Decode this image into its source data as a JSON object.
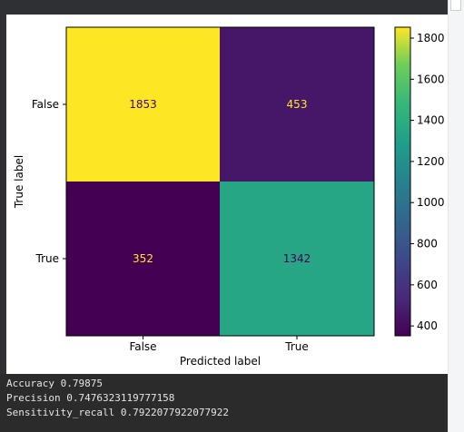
{
  "chart_data": {
    "type": "heatmap",
    "x_categories": [
      "False",
      "True"
    ],
    "y_categories": [
      "False",
      "True"
    ],
    "values": [
      [
        1853,
        453
      ],
      [
        352,
        1342
      ]
    ],
    "xlabel": "Predicted label",
    "ylabel": "True label",
    "colorbar": {
      "min": 352,
      "max": 1853,
      "ticks": [
        400,
        600,
        800,
        1000,
        1200,
        1400,
        1600,
        1800
      ],
      "tick_labels": [
        "400",
        "600",
        "800",
        "1000",
        "1200",
        "1400",
        "1600",
        "1800"
      ],
      "colormap": "viridis"
    },
    "cell_colors": {
      "high": "#fde725",
      "mid": "#1fa187",
      "low": "#440154",
      "low_alt": "#472d7b"
    },
    "text_colors": {
      "on_dark": "#fde725",
      "on_light": "#440154"
    }
  },
  "console": {
    "lines": [
      "Accuracy 0.79875",
      "Precision 0.7476323119777158",
      "Sensitivity_recall 0.7922077922077922"
    ]
  },
  "colors": {
    "console_bg": "#2b2b2b",
    "console_text": "#e6e6e6",
    "frame_dark": "#2f3033"
  }
}
